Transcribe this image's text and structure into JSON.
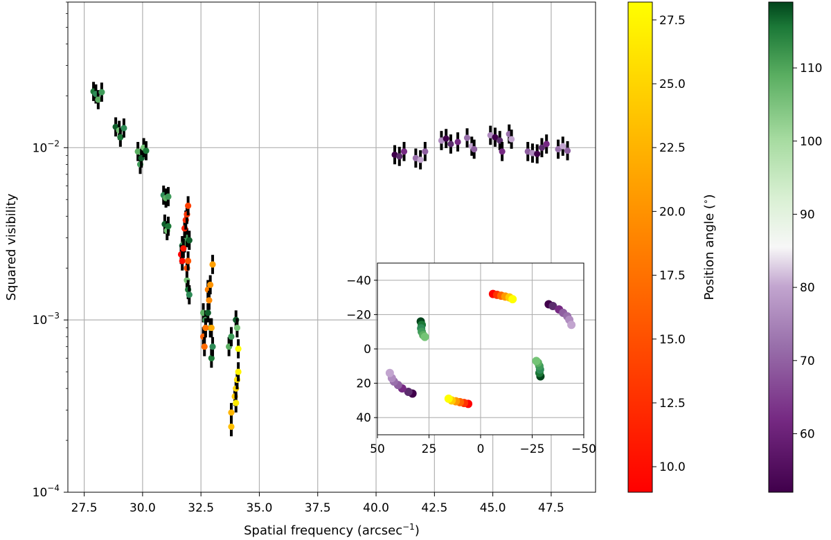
{
  "chart_data": [
    {
      "type": "scatter",
      "xlabel": "Spatial frequency (arcsec",
      "xlabel_sup": "−1",
      "xlabel_end": ")",
      "ylabel": "Squared visibility",
      "xlim": [
        26.8,
        49.4
      ],
      "ylim": [
        0.0001,
        0.07
      ],
      "yscale": "log",
      "grid": true,
      "x_ticks": [
        27.5,
        30.0,
        32.5,
        35.0,
        37.5,
        40.0,
        42.5,
        45.0,
        47.5
      ],
      "x_tick_labels": [
        "27.5",
        "30.0",
        "32.5",
        "35.0",
        "37.5",
        "40.0",
        "42.5",
        "45.0",
        "47.5"
      ],
      "y_ticks": [
        0.0001,
        0.001,
        0.01
      ],
      "y_tick_labels": [
        {
          "base": "10",
          "exp": "−4"
        },
        {
          "base": "10",
          "exp": "−3"
        },
        {
          "base": "10",
          "exp": "−2"
        }
      ],
      "series": [
        {
          "colormap": "green",
          "points": [
            {
              "x": 27.9,
              "y": 0.0212
            },
            {
              "x": 28.0,
              "y": 0.0205
            },
            {
              "x": 28.1,
              "y": 0.019
            },
            {
              "x": 28.25,
              "y": 0.021
            },
            {
              "x": 28.85,
              "y": 0.0132
            },
            {
              "x": 29.0,
              "y": 0.0126
            },
            {
              "x": 29.05,
              "y": 0.0115
            },
            {
              "x": 29.2,
              "y": 0.013
            },
            {
              "x": 29.8,
              "y": 0.0095
            },
            {
              "x": 29.9,
              "y": 0.008
            },
            {
              "x": 29.95,
              "y": 0.0087
            },
            {
              "x": 30.05,
              "y": 0.01
            },
            {
              "x": 30.15,
              "y": 0.0096
            },
            {
              "x": 30.9,
              "y": 0.0053
            },
            {
              "x": 31.0,
              "y": 0.0051
            },
            {
              "x": 31.1,
              "y": 0.0052
            },
            {
              "x": 30.95,
              "y": 0.0036
            },
            {
              "x": 31.05,
              "y": 0.0033
            },
            {
              "x": 31.1,
              "y": 0.0035
            },
            {
              "x": 31.7,
              "y": 0.0027
            },
            {
              "x": 31.8,
              "y": 0.0028
            },
            {
              "x": 31.9,
              "y": 0.003
            },
            {
              "x": 32.0,
              "y": 0.0029
            },
            {
              "x": 31.9,
              "y": 0.0017
            },
            {
              "x": 31.95,
              "y": 0.0015
            },
            {
              "x": 32.0,
              "y": 0.0014
            },
            {
              "x": 32.6,
              "y": 0.0011
            },
            {
              "x": 32.7,
              "y": 0.001
            },
            {
              "x": 32.8,
              "y": 0.0011
            },
            {
              "x": 32.9,
              "y": 0.0009
            },
            {
              "x": 32.95,
              "y": 0.0006
            },
            {
              "x": 33.0,
              "y": 0.0007
            },
            {
              "x": 33.7,
              "y": 0.0007
            },
            {
              "x": 33.8,
              "y": 0.0008
            },
            {
              "x": 34.0,
              "y": 0.001
            },
            {
              "x": 34.05,
              "y": 0.0009
            }
          ]
        },
        {
          "colormap": "autumn",
          "points": [
            {
              "x": 31.65,
              "y": 0.0024
            },
            {
              "x": 31.7,
              "y": 0.0022
            },
            {
              "x": 31.75,
              "y": 0.0026
            },
            {
              "x": 31.8,
              "y": 0.0034
            },
            {
              "x": 31.85,
              "y": 0.0038
            },
            {
              "x": 31.9,
              "y": 0.0041
            },
            {
              "x": 31.95,
              "y": 0.0046
            },
            {
              "x": 31.9,
              "y": 0.002
            },
            {
              "x": 31.95,
              "y": 0.0022
            },
            {
              "x": 32.6,
              "y": 0.0008
            },
            {
              "x": 32.65,
              "y": 0.0007
            },
            {
              "x": 32.7,
              "y": 0.0009
            },
            {
              "x": 32.8,
              "y": 0.0015
            },
            {
              "x": 32.85,
              "y": 0.0013
            },
            {
              "x": 32.9,
              "y": 0.0016
            },
            {
              "x": 33.0,
              "y": 0.0021
            },
            {
              "x": 32.95,
              "y": 0.0009
            },
            {
              "x": 33.8,
              "y": 0.00029
            },
            {
              "x": 33.8,
              "y": 0.00024
            },
            {
              "x": 33.95,
              "y": 0.00036
            },
            {
              "x": 34.0,
              "y": 0.0004
            },
            {
              "x": 34.05,
              "y": 0.00045
            },
            {
              "x": 34.0,
              "y": 0.00033
            },
            {
              "x": 34.1,
              "y": 0.0005
            },
            {
              "x": 34.1,
              "y": 0.00068
            }
          ]
        },
        {
          "colormap": "purple",
          "points": [
            {
              "x": 40.8,
              "y": 0.0091
            },
            {
              "x": 41.0,
              "y": 0.0089
            },
            {
              "x": 41.2,
              "y": 0.0095
            },
            {
              "x": 41.7,
              "y": 0.0087
            },
            {
              "x": 41.9,
              "y": 0.0085
            },
            {
              "x": 42.1,
              "y": 0.0095
            },
            {
              "x": 42.8,
              "y": 0.011
            },
            {
              "x": 43.0,
              "y": 0.0113
            },
            {
              "x": 43.2,
              "y": 0.0105
            },
            {
              "x": 43.5,
              "y": 0.0108
            },
            {
              "x": 43.9,
              "y": 0.0114
            },
            {
              "x": 44.1,
              "y": 0.0102
            },
            {
              "x": 44.2,
              "y": 0.0098
            },
            {
              "x": 44.9,
              "y": 0.0118
            },
            {
              "x": 45.1,
              "y": 0.0115
            },
            {
              "x": 45.3,
              "y": 0.011
            },
            {
              "x": 45.4,
              "y": 0.0095
            },
            {
              "x": 45.7,
              "y": 0.012
            },
            {
              "x": 45.8,
              "y": 0.0112
            },
            {
              "x": 46.5,
              "y": 0.0095
            },
            {
              "x": 46.7,
              "y": 0.0093
            },
            {
              "x": 46.9,
              "y": 0.0092
            },
            {
              "x": 47.1,
              "y": 0.01
            },
            {
              "x": 47.3,
              "y": 0.0105
            },
            {
              "x": 47.8,
              "y": 0.0098
            },
            {
              "x": 48.0,
              "y": 0.0102
            },
            {
              "x": 48.2,
              "y": 0.0096
            }
          ]
        }
      ]
    },
    {
      "type": "scatter",
      "name": "inset",
      "xlim": [
        50,
        -50
      ],
      "ylim": [
        50,
        -50
      ],
      "x_tick_labels": [
        "50",
        "25",
        "0",
        "−25",
        "−50"
      ],
      "x_ticks": [
        50,
        25,
        0,
        -25,
        -50
      ],
      "y_tick_labels": [
        "−40",
        "−20",
        "0",
        "20",
        "40"
      ],
      "y_ticks": [
        -40,
        -20,
        0,
        20,
        40
      ],
      "grid": true,
      "series": [
        {
          "colormap": "autumn",
          "points": [
            {
              "x": -6,
              "y": -32
            },
            {
              "x": -8,
              "y": -31.5
            },
            {
              "x": -10,
              "y": -31
            },
            {
              "x": -12,
              "y": -30.5
            },
            {
              "x": -14,
              "y": -30
            },
            {
              "x": -15.5,
              "y": -29
            },
            {
              "x": 6,
              "y": 32
            },
            {
              "x": 8,
              "y": 31.5
            },
            {
              "x": 10,
              "y": 31
            },
            {
              "x": 12,
              "y": 30.5
            },
            {
              "x": 14,
              "y": 30
            },
            {
              "x": 15.5,
              "y": 29
            }
          ]
        },
        {
          "colormap": "green",
          "points": [
            {
              "x": 29,
              "y": -16
            },
            {
              "x": 28.5,
              "y": -14
            },
            {
              "x": 28.8,
              "y": -12
            },
            {
              "x": 28.5,
              "y": -10
            },
            {
              "x": 27.8,
              "y": -8
            },
            {
              "x": 27,
              "y": -7
            },
            {
              "x": -29,
              "y": 16
            },
            {
              "x": -28.5,
              "y": 14
            },
            {
              "x": -28.8,
              "y": 12
            },
            {
              "x": -28.5,
              "y": 10
            },
            {
              "x": -27.8,
              "y": 8
            },
            {
              "x": -27,
              "y": 7
            }
          ]
        },
        {
          "colormap": "purple",
          "points": [
            {
              "x": -33,
              "y": -26
            },
            {
              "x": -35,
              "y": -25
            },
            {
              "x": -38,
              "y": -23
            },
            {
              "x": -40,
              "y": -21
            },
            {
              "x": -42,
              "y": -19
            },
            {
              "x": -43,
              "y": -17
            },
            {
              "x": -44,
              "y": -14
            },
            {
              "x": 33,
              "y": 26
            },
            {
              "x": 35,
              "y": 25
            },
            {
              "x": 38,
              "y": 23
            },
            {
              "x": 40,
              "y": 21
            },
            {
              "x": 42,
              "y": 19
            },
            {
              "x": 43,
              "y": 17
            },
            {
              "x": 44,
              "y": 14
            }
          ]
        }
      ]
    }
  ],
  "colorbars": [
    {
      "colormap": "autumn",
      "label": "Position angle (",
      "label_sup": "∘",
      "label_end": ")",
      "range": [
        9.0,
        28.2
      ],
      "ticks": [
        10.0,
        12.5,
        15.0,
        17.5,
        20.0,
        22.5,
        25.0,
        27.5
      ],
      "tick_labels": [
        "10.0",
        "12.5",
        "15.0",
        "17.5",
        "20.0",
        "22.5",
        "25.0",
        "27.5"
      ]
    },
    {
      "colormap": "green-purple",
      "range": [
        52,
        119
      ],
      "ticks": [
        60,
        70,
        80,
        90,
        100,
        110
      ],
      "tick_labels": [
        "60",
        "70",
        "80",
        "90",
        "100",
        "110"
      ]
    }
  ],
  "colors": {
    "autumn_low": "#ff0000",
    "autumn_high": "#ffff00",
    "green": "#2e8b57",
    "purple": "#6a3d7f",
    "grid": "#b0b0b0",
    "errorbar": "#000000"
  }
}
